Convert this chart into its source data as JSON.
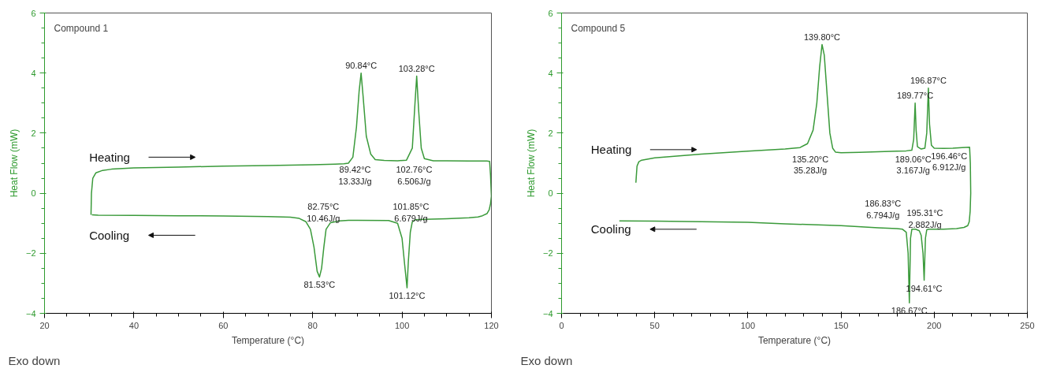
{
  "chart_data": [
    {
      "type": "line",
      "title": "Compound 1",
      "xlabel": "Temperature (°C)",
      "ylabel": "Heat Flow (mW)",
      "xlim": [
        20,
        120
      ],
      "ylim": [
        -4,
        6
      ],
      "xticks": [
        20,
        40,
        60,
        80,
        100,
        120
      ],
      "yticks": [
        -4,
        -2,
        0,
        2,
        4,
        6
      ],
      "series": [
        {
          "color": "#3a9a3a",
          "x": [
            30.4,
            30.5,
            30.8,
            31.5,
            33,
            35,
            40,
            50,
            60,
            70,
            80,
            85,
            87,
            88,
            89,
            89.8,
            90.4,
            90.84,
            91.3,
            92,
            93,
            94,
            96,
            99,
            101,
            102.3,
            102.9,
            103.28,
            103.7,
            104.3,
            105,
            107,
            110,
            115,
            119,
            119.6,
            119.8,
            120,
            119.8,
            119.5,
            119,
            118,
            117,
            115,
            110,
            105,
            103,
            102.3,
            101.85,
            101.4,
            101.12,
            100.6,
            100,
            99,
            97,
            90,
            88,
            86,
            84,
            83,
            82.5,
            82,
            81.53,
            81,
            80.3,
            79.5,
            78.5,
            77,
            75,
            70,
            60,
            50,
            40,
            32,
            30.6
          ],
          "values": [
            -0.72,
            0.0,
            0.5,
            0.68,
            0.76,
            0.8,
            0.84,
            0.87,
            0.9,
            0.92,
            0.95,
            0.97,
            0.98,
            1.0,
            1.2,
            2.2,
            3.4,
            4.0,
            3.2,
            1.9,
            1.3,
            1.12,
            1.09,
            1.08,
            1.1,
            1.5,
            3.0,
            3.9,
            2.8,
            1.5,
            1.15,
            1.08,
            1.08,
            1.07,
            1.07,
            1.06,
            0.6,
            -0.1,
            -0.35,
            -0.55,
            -0.68,
            -0.75,
            -0.79,
            -0.82,
            -0.85,
            -0.87,
            -0.88,
            -0.95,
            -1.3,
            -2.3,
            -3.15,
            -2.4,
            -1.5,
            -1.0,
            -0.91,
            -0.9,
            -0.9,
            -0.92,
            -0.98,
            -1.2,
            -1.8,
            -2.5,
            -2.79,
            -2.6,
            -1.8,
            -1.2,
            -0.95,
            -0.84,
            -0.8,
            -0.78,
            -0.76,
            -0.75,
            -0.74,
            -0.73,
            -0.72
          ]
        }
      ],
      "annotations": [
        "Heating",
        "Cooling",
        "89.42°C\n13.33J/g",
        "102.76°C\n6.506J/g",
        "82.75°C\n10.46J/g",
        "101.85°C\n6.679J/g",
        "Exo down",
        {
          "text": "90.84°C",
          "x": 90.84,
          "y": 4.0
        },
        {
          "text": "103.28°C",
          "x": 103.28,
          "y": 3.9
        },
        {
          "text": "81.53°C",
          "x": 81.53,
          "y": -2.79
        },
        {
          "text": "101.12°C",
          "x": 101.12,
          "y": -3.15
        }
      ]
    },
    {
      "type": "line",
      "title": "Compound 5",
      "xlabel": "Temperature (°C)",
      "ylabel": "Heat Flow (mW)",
      "xlim": [
        0,
        250
      ],
      "ylim": [
        -4,
        6
      ],
      "xticks": [
        0,
        50,
        100,
        150,
        200,
        250
      ],
      "yticks": [
        -4,
        -2,
        0,
        2,
        4,
        6
      ],
      "series": [
        {
          "color": "#3a9a3a",
          "x": [
            39.9,
            40.1,
            40.5,
            41.5,
            43,
            50,
            75,
            100,
            120,
            128,
            132,
            135,
            137,
            138.5,
            139.8,
            141,
            142.5,
            144,
            145.5,
            147,
            150,
            160,
            170,
            180,
            185,
            188,
            189,
            189.77,
            190.3,
            191,
            193,
            195,
            196,
            196.87,
            197.5,
            198.5,
            200,
            205,
            210,
            215,
            219,
            219.4,
            219.6,
            219.3,
            218.8,
            218,
            216,
            212,
            205,
            200,
            197,
            196,
            195.3,
            194.61,
            194,
            193,
            192,
            190,
            188,
            187.3,
            186.67,
            186,
            185,
            183,
            180,
            170,
            150,
            120,
            100,
            75,
            50,
            31
          ],
          "values": [
            0.35,
            0.55,
            0.9,
            1.05,
            1.1,
            1.18,
            1.3,
            1.4,
            1.47,
            1.52,
            1.65,
            2.1,
            3.0,
            4.2,
            4.95,
            4.6,
            3.3,
            2.0,
            1.5,
            1.37,
            1.35,
            1.36,
            1.38,
            1.4,
            1.41,
            1.43,
            1.8,
            3.0,
            2.1,
            1.55,
            1.47,
            1.5,
            2.0,
            3.5,
            2.3,
            1.6,
            1.5,
            1.49,
            1.5,
            1.52,
            1.53,
            1.0,
            0.0,
            -0.6,
            -0.95,
            -1.08,
            -1.14,
            -1.18,
            -1.2,
            -1.2,
            -1.2,
            -1.22,
            -1.5,
            -2.9,
            -2.0,
            -1.4,
            -1.25,
            -1.2,
            -1.2,
            -1.5,
            -3.65,
            -2.0,
            -1.3,
            -1.2,
            -1.18,
            -1.15,
            -1.08,
            -1.02,
            -0.97,
            -0.95,
            -0.93,
            -0.92
          ]
        }
      ],
      "annotations": [
        "Heating",
        "Cooling",
        "135.20°C\n35.28J/g",
        "189.06°C\n3.167J/g",
        "196.46°C\n6.912J/g",
        "186.83°C\n6.794J/g",
        "195.31°C\n2.882J/g",
        "Exo down",
        {
          "text": "139.80°C",
          "x": 139.8,
          "y": 4.95
        },
        {
          "text": "189.77°C",
          "x": 189.77,
          "y": 3.0
        },
        {
          "text": "196.87°C",
          "x": 196.87,
          "y": 3.5
        },
        {
          "text": "194.61°C",
          "x": 194.61,
          "y": -2.9
        },
        {
          "text": "186.67°C",
          "x": 186.67,
          "y": -3.65
        }
      ]
    }
  ]
}
